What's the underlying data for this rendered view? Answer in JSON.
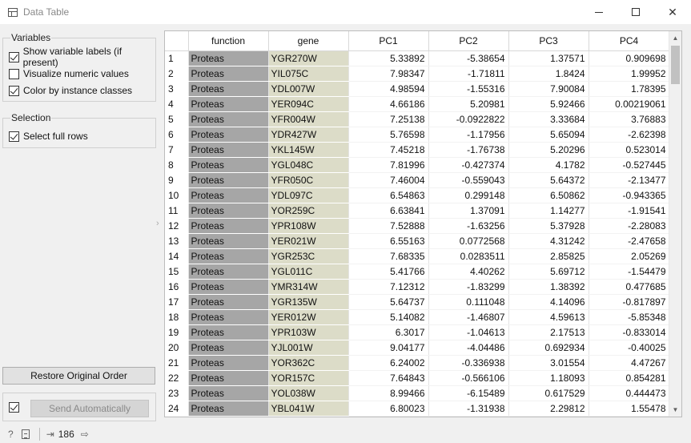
{
  "window": {
    "title": "Data Table"
  },
  "variables_group": {
    "title": "Variables",
    "options": [
      {
        "label": "Show variable labels (if present)",
        "checked": true
      },
      {
        "label": "Visualize numeric values",
        "checked": false
      },
      {
        "label": "Color by instance classes",
        "checked": true
      }
    ]
  },
  "selection_group": {
    "title": "Selection",
    "options": [
      {
        "label": "Select full rows",
        "checked": true
      }
    ]
  },
  "buttons": {
    "restore": "Restore Original Order",
    "send": "Send Automatically",
    "send_auto_checked": true
  },
  "status": {
    "count": "186"
  },
  "table": {
    "columns": [
      "function",
      "gene",
      "PC1",
      "PC2",
      "PC3",
      "PC4"
    ],
    "rows": [
      [
        "1",
        "Proteas",
        "YGR270W",
        "5.33892",
        "-5.38654",
        "1.37571",
        "0.909698"
      ],
      [
        "2",
        "Proteas",
        "YIL075C",
        "7.98347",
        "-1.71811",
        "1.8424",
        "1.99952"
      ],
      [
        "3",
        "Proteas",
        "YDL007W",
        "4.98594",
        "-1.55316",
        "7.90084",
        "1.78395"
      ],
      [
        "4",
        "Proteas",
        "YER094C",
        "4.66186",
        "5.20981",
        "5.92466",
        "0.00219061"
      ],
      [
        "5",
        "Proteas",
        "YFR004W",
        "7.25138",
        "-0.0922822",
        "3.33684",
        "3.76883"
      ],
      [
        "6",
        "Proteas",
        "YDR427W",
        "5.76598",
        "-1.17956",
        "5.65094",
        "-2.62398"
      ],
      [
        "7",
        "Proteas",
        "YKL145W",
        "7.45218",
        "-1.76738",
        "5.20296",
        "0.523014"
      ],
      [
        "8",
        "Proteas",
        "YGL048C",
        "7.81996",
        "-0.427374",
        "4.1782",
        "-0.527445"
      ],
      [
        "9",
        "Proteas",
        "YFR050C",
        "7.46004",
        "-0.559043",
        "5.64372",
        "-2.13477"
      ],
      [
        "10",
        "Proteas",
        "YDL097C",
        "6.54863",
        "0.299148",
        "6.50862",
        "-0.943365"
      ],
      [
        "11",
        "Proteas",
        "YOR259C",
        "6.63841",
        "1.37091",
        "1.14277",
        "-1.91541"
      ],
      [
        "12",
        "Proteas",
        "YPR108W",
        "7.52888",
        "-1.63256",
        "5.37928",
        "-2.28083"
      ],
      [
        "13",
        "Proteas",
        "YER021W",
        "6.55163",
        "0.0772568",
        "4.31242",
        "-2.47658"
      ],
      [
        "14",
        "Proteas",
        "YGR253C",
        "7.68335",
        "0.0283511",
        "2.85825",
        "2.05269"
      ],
      [
        "15",
        "Proteas",
        "YGL011C",
        "5.41766",
        "4.40262",
        "5.69712",
        "-1.54479"
      ],
      [
        "16",
        "Proteas",
        "YMR314W",
        "7.12312",
        "-1.83299",
        "1.38392",
        "0.477685"
      ],
      [
        "17",
        "Proteas",
        "YGR135W",
        "5.64737",
        "0.111048",
        "4.14096",
        "-0.817897"
      ],
      [
        "18",
        "Proteas",
        "YER012W",
        "5.14082",
        "-1.46807",
        "4.59613",
        "-5.85348"
      ],
      [
        "19",
        "Proteas",
        "YPR103W",
        "6.3017",
        "-1.04613",
        "2.17513",
        "-0.833014"
      ],
      [
        "20",
        "Proteas",
        "YJL001W",
        "9.04177",
        "-4.04486",
        "0.692934",
        "-0.40025"
      ],
      [
        "21",
        "Proteas",
        "YOR362C",
        "6.24002",
        "-0.336938",
        "3.01554",
        "4.47267"
      ],
      [
        "22",
        "Proteas",
        "YOR157C",
        "7.64843",
        "-0.566106",
        "1.18093",
        "0.854281"
      ],
      [
        "23",
        "Proteas",
        "YOL038W",
        "8.99466",
        "-6.15489",
        "0.617529",
        "0.444473"
      ],
      [
        "24",
        "Proteas",
        "YBL041W",
        "6.80023",
        "-1.31938",
        "2.29812",
        "1.55478"
      ]
    ]
  }
}
